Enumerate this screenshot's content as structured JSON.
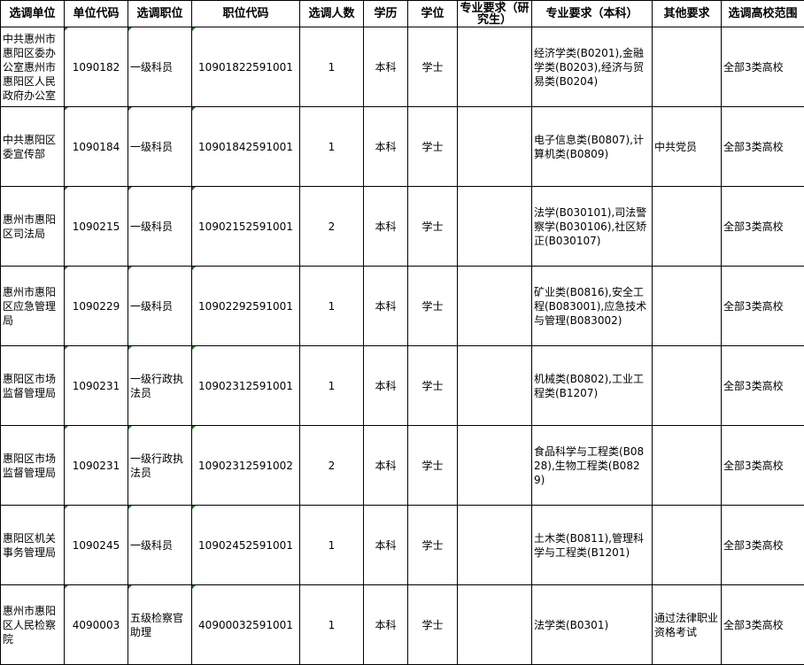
{
  "headers": [
    "选调单位",
    "单位代码",
    "选调职位",
    "职位代码",
    "选调人数",
    "学历",
    "学位",
    "专业要求（研究生）",
    "专业要求（本科）",
    "其他要求",
    "选调高校范围"
  ],
  "rows": [
    [
      "中共惠州市惠阳区委办公室惠州市惠阳区人民政府办公室",
      "1090182",
      "一级科员",
      "10901822591001",
      "1",
      "本科",
      "学士",
      "",
      "经济学类(B0201),金融学类(B0203),经济与贸易类(B0204)",
      "",
      "全部3类高校"
    ],
    [
      "中共惠阳区委宣传部",
      "1090184",
      "一级科员",
      "10901842591001",
      "1",
      "本科",
      "学士",
      "",
      "电子信息类(B0807),计算机类(B0809)",
      "中共党员",
      "全部3类高校"
    ],
    [
      "惠州市惠阳区司法局",
      "1090215",
      "一级科员",
      "10902152591001",
      "2",
      "本科",
      "学士",
      "",
      "法学(B030101),司法警察学(B030106),社区矫正(B030107)",
      "",
      "全部3类高校"
    ],
    [
      "惠州市惠阳区应急管理局",
      "1090229",
      "一级科员",
      "10902292591001",
      "1",
      "本科",
      "学士",
      "",
      "矿业类(B0816),安全工程(B083001),应急技术与管理(B083002)",
      "",
      "全部3类高校"
    ],
    [
      "惠阳区市场监督管理局",
      "1090231",
      "一级行政执法员",
      "10902312591001",
      "1",
      "本科",
      "学士",
      "",
      "机械类(B0802),工业工程类(B1207)",
      "",
      "全部3类高校"
    ],
    [
      "惠阳区市场监督管理局",
      "1090231",
      "一级行政执法员",
      "10902312591002",
      "2",
      "本科",
      "学士",
      "",
      "食品科学与工程类(B0828),生物工程类(B0829)",
      "",
      "全部3类高校"
    ],
    [
      "惠阳区机关事务管理局",
      "1090245",
      "一级科员",
      "10902452591001",
      "1",
      "本科",
      "学士",
      "",
      "土木类(B0811),管理科学与工程类(B1201)",
      "",
      "全部3类高校"
    ],
    [
      "惠州市惠阳区人民检察院",
      "4090003",
      "五级检察官助理",
      "40900032591001",
      "1",
      "本科",
      "学士",
      "",
      "法学类(B0301)",
      "通过法律职业资格考试",
      "全部3类高校"
    ]
  ],
  "colors": {
    "cell_marker": "#1f7a1f",
    "grid": "#000000"
  }
}
